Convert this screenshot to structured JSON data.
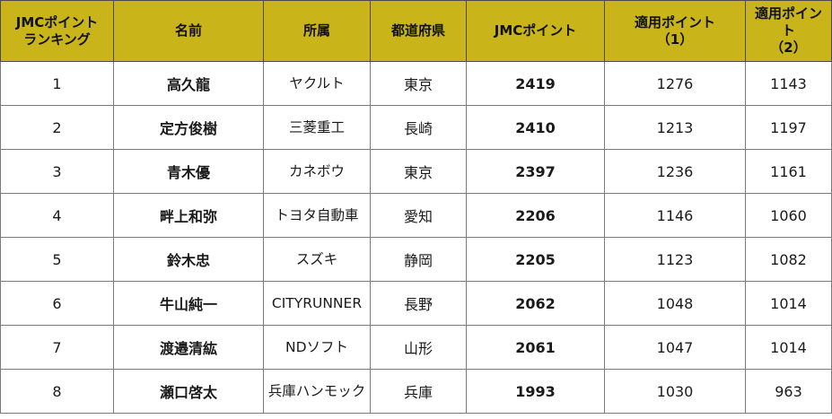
{
  "table": {
    "headers": [
      {
        "line1": "JMCポイント",
        "line2": "ランキング"
      },
      {
        "line1": "名前",
        "line2": ""
      },
      {
        "line1": "所属",
        "line2": ""
      },
      {
        "line1": "都道府県",
        "line2": ""
      },
      {
        "line1": "JMCポイント",
        "line2": ""
      },
      {
        "line1": "適用ポイント",
        "line2": "（1）"
      },
      {
        "line1": "適用ポイント",
        "line2": "（2）"
      }
    ],
    "rows": [
      {
        "rank": "1",
        "name": "高久龍",
        "affiliation": "ヤクルト",
        "prefecture": "東京",
        "jmc_points": "2419",
        "points1": "1276",
        "points2": "1143"
      },
      {
        "rank": "2",
        "name": "定方俊樹",
        "affiliation": "三菱重工",
        "prefecture": "長崎",
        "jmc_points": "2410",
        "points1": "1213",
        "points2": "1197"
      },
      {
        "rank": "3",
        "name": "青木優",
        "affiliation": "カネボウ",
        "prefecture": "東京",
        "jmc_points": "2397",
        "points1": "1236",
        "points2": "1161"
      },
      {
        "rank": "4",
        "name": "畔上和弥",
        "affiliation": "トヨタ自動車",
        "prefecture": "愛知",
        "jmc_points": "2206",
        "points1": "1146",
        "points2": "1060"
      },
      {
        "rank": "5",
        "name": "鈴木忠",
        "affiliation": "スズキ",
        "prefecture": "静岡",
        "jmc_points": "2205",
        "points1": "1123",
        "points2": "1082"
      },
      {
        "rank": "6",
        "name": "牛山純一",
        "affiliation": "CITYRUNNER",
        "prefecture": "長野",
        "jmc_points": "2062",
        "points1": "1048",
        "points2": "1014"
      },
      {
        "rank": "7",
        "name": "渡邉清紘",
        "affiliation": "NDソフト",
        "prefecture": "山形",
        "jmc_points": "2061",
        "points1": "1047",
        "points2": "1014"
      },
      {
        "rank": "8",
        "name": "瀬口啓太",
        "affiliation": "兵庫ハンモック",
        "prefecture": "兵庫",
        "jmc_points": "1993",
        "points1": "1030",
        "points2": "963"
      }
    ]
  },
  "colors": {
    "header_bg": "#c9b51a",
    "border": "#7a7a7a"
  }
}
